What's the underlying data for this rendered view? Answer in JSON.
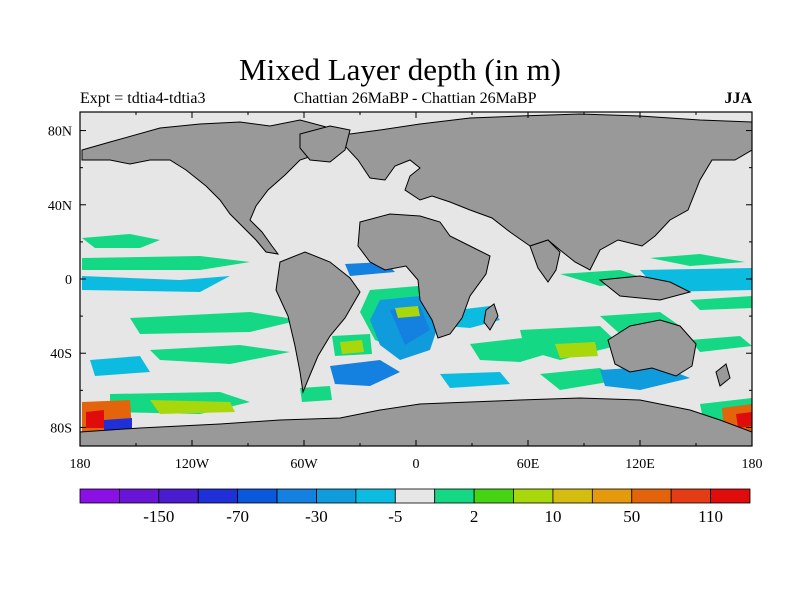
{
  "title": "Mixed Layer depth (in m)",
  "subtitle_left": "Expt = tdtia4-tdtia3",
  "subtitle_center": "Chattian  26MaBP - Chattian  26MaBP",
  "subtitle_right": "JJA",
  "map": {
    "projection": "cylindrical equidistant",
    "lon_range": [
      -180,
      180
    ],
    "lat_range": [
      -90,
      90
    ],
    "ocean_background": "#e6e6e6",
    "land_color": "#999999",
    "lon_ticks": [
      "180",
      "120W",
      "60W",
      "0",
      "60E",
      "120E",
      "180"
    ],
    "lat_ticks": [
      "80N",
      "40N",
      "0",
      "40S",
      "80S"
    ]
  },
  "colorbar": {
    "colors": [
      "#8a10e6",
      "#6a14d8",
      "#4a1cd0",
      "#2030d8",
      "#0a58dc",
      "#1480e0",
      "#109cdc",
      "#0cbce0",
      "#e6e6e6",
      "#14d884",
      "#44d414",
      "#a8d80c",
      "#d4bc10",
      "#e49a0c",
      "#e4640c",
      "#e43c14",
      "#e00c0c"
    ],
    "labels": [
      "-150",
      "-70",
      "-30",
      "-5",
      "2",
      "10",
      "50",
      "110"
    ]
  }
}
